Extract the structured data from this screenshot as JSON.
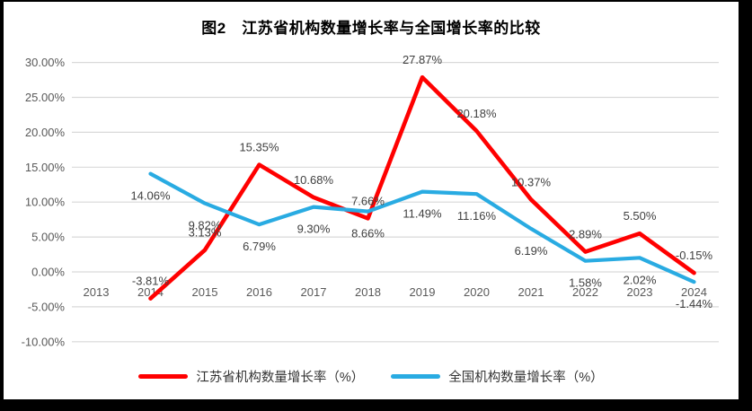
{
  "title": "图2　江苏省机构数量增长率与全国增长率的比较",
  "chart_data": {
    "type": "line",
    "title": "图2　江苏省机构数量增长率与全国增长率的比较",
    "categories": [
      "2013",
      "2014",
      "2015",
      "2016",
      "2017",
      "2018",
      "2019",
      "2020",
      "2021",
      "2022",
      "2023",
      "2024"
    ],
    "series": [
      {
        "name": "江苏省机构数量增长率（%）",
        "color": "#FF0000",
        "label_position": "above",
        "values": [
          null,
          -3.81,
          3.13,
          15.35,
          10.68,
          7.66,
          27.87,
          20.18,
          10.37,
          2.89,
          5.5,
          -0.15
        ]
      },
      {
        "name": "全国机构数量增长率（%）",
        "color": "#29ABE2",
        "label_position": "below",
        "values": [
          null,
          14.06,
          9.82,
          6.79,
          9.3,
          8.66,
          11.49,
          11.16,
          6.19,
          1.58,
          2.02,
          -1.44
        ]
      }
    ],
    "xlabel": "",
    "ylabel": "",
    "ylim": [
      -10,
      30
    ],
    "ytick_step": 5,
    "ytick_labels": [
      "30.00%",
      "25.00%",
      "20.00%",
      "15.00%",
      "10.00%",
      "5.00%",
      "0.00%",
      "-5.00%",
      "-10.00%"
    ],
    "value_format": "0.00%",
    "grid": true,
    "legend_position": "bottom",
    "colors": {
      "gridline": "#D9D9D9",
      "axis_text": "#595959",
      "data_label_text": "#404040",
      "title_text": "#000000",
      "canvas_background": "#FFFFFF",
      "letterbox": "#000000"
    }
  }
}
